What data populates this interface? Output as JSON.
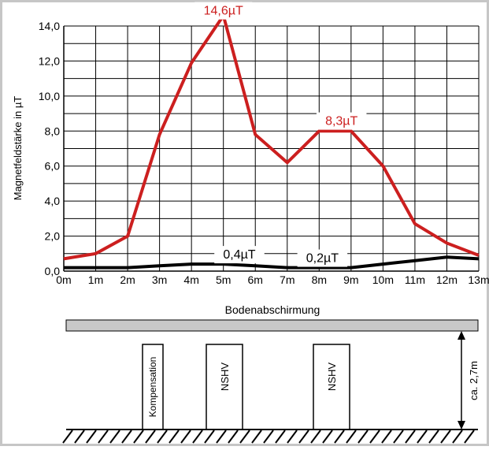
{
  "colors": {
    "frame": "#c6c6c6",
    "grid": "#000000",
    "series_total": "#cc1f1f",
    "series_shielded": "#000000",
    "label_red": "#cc1f1f",
    "slab": "#c8c8c8"
  },
  "chart_data": {
    "type": "line",
    "title": "",
    "xlabel": "",
    "ylabel": "Magnetfeldstärke in µT",
    "xlim": [
      0,
      13
    ],
    "ylim": [
      0,
      14
    ],
    "grid": true,
    "x_tick_labels": [
      "0m",
      "1m",
      "2m",
      "3m",
      "4m",
      "5m",
      "6m",
      "7m",
      "8m",
      "9m",
      "10m",
      "11m",
      "12m",
      "13m"
    ],
    "y_tick_labels": [
      "0,0",
      "2,0",
      "4,0",
      "6,0",
      "8,0",
      "10,0",
      "12,0",
      "14,0"
    ],
    "y_ticks": [
      0,
      2,
      4,
      6,
      8,
      10,
      12,
      14
    ],
    "series": [
      {
        "x": [
          0,
          1,
          2,
          3,
          4,
          5,
          6,
          7,
          8,
          9,
          10,
          11,
          12,
          13
        ],
        "y": [
          0.7,
          1.0,
          2.0,
          7.8,
          11.9,
          14.6,
          7.8,
          6.2,
          8.0,
          8.0,
          6.0,
          2.7,
          1.6,
          0.9
        ],
        "color": "#cc1f1f"
      },
      {
        "x": [
          0,
          1,
          2,
          3,
          4,
          5,
          6,
          7,
          8,
          9,
          10,
          11,
          12,
          13
        ],
        "y": [
          0.2,
          0.2,
          0.2,
          0.3,
          0.4,
          0.4,
          0.3,
          0.2,
          0.2,
          0.2,
          0.4,
          0.6,
          0.8,
          0.7
        ],
        "color": "#000000"
      }
    ],
    "annotations": [
      {
        "text": "14,6µT",
        "x": 5,
        "y": 14.6,
        "color": "#cc1f1f"
      },
      {
        "text": "8,3µT",
        "x": 8.7,
        "y": 8.3,
        "color": "#cc1f1f"
      },
      {
        "text": "0,4µT",
        "x": 5.5,
        "y": 0.4,
        "color": "#000000"
      },
      {
        "text": "0,2µT",
        "x": 8.1,
        "y": 0.2,
        "color": "#000000"
      }
    ]
  },
  "diagram": {
    "ceiling_label": "Bodenabschirmung",
    "boxes": [
      {
        "label": "Kompensation"
      },
      {
        "label": "NSHV"
      },
      {
        "label": "NSHV"
      }
    ],
    "height_label": "ca. 2,7m"
  }
}
